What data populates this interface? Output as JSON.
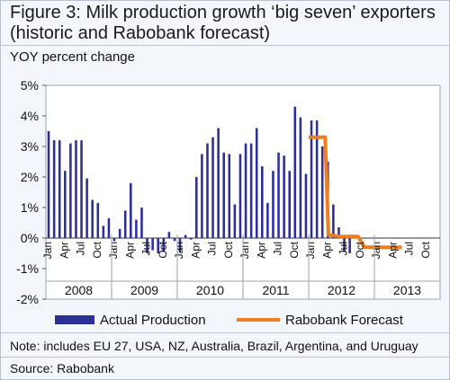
{
  "title_line1": "Figure 3: Milk production growth ‘big seven’ exporters",
  "title_line2": "(historic and Rabobank forecast)",
  "note": "Note: includes EU 27, USA, NZ, Australia, Brazil, Argentina, and Uruguay",
  "source": "Source: Rabobank",
  "colors": {
    "bars": "#2b2f96",
    "forecast": "#f07d1e",
    "background": "#f3f6fa"
  },
  "chart_data": {
    "type": "bar",
    "ylabel": "YOY percent change",
    "ylim": [
      -2,
      5
    ],
    "yticks": [
      "-2%",
      "-1%",
      "0%",
      "1%",
      "2%",
      "3%",
      "4%",
      "5%"
    ],
    "month_labels": [
      "Jan",
      "Apr",
      "Jul",
      "Oct"
    ],
    "years": [
      "2008",
      "2009",
      "2010",
      "2011",
      "2012",
      "2013"
    ],
    "legend_position": "bottom",
    "series": [
      {
        "name": "Actual Production",
        "kind": "bar",
        "values": [
          3.5,
          3.2,
          3.2,
          2.2,
          3.1,
          3.2,
          3.2,
          1.95,
          1.25,
          1.15,
          0.4,
          0.65,
          -0.1,
          0.3,
          0.9,
          1.8,
          0.6,
          1.0,
          -0.5,
          -0.4,
          -0.5,
          -0.45,
          0.2,
          -0.1,
          -0.45,
          0.1,
          -0.05,
          2.0,
          2.75,
          3.1,
          3.3,
          3.6,
          2.8,
          2.75,
          1.1,
          2.75,
          3.1,
          3.1,
          3.6,
          2.35,
          1.15,
          2.2,
          2.8,
          2.7,
          2.2,
          4.3,
          3.95,
          2.1,
          3.85,
          3.85,
          3.0,
          2.5,
          1.1,
          0.35,
          -0.45,
          -0.5
        ]
      },
      {
        "name": "Rabobank Forecast",
        "kind": "line",
        "x": [
          48,
          51,
          51.6,
          54,
          57,
          58.2,
          61,
          65
        ],
        "values": [
          3.3,
          3.3,
          0.1,
          0.05,
          0.05,
          -0.3,
          -0.3,
          -0.3
        ]
      }
    ]
  }
}
